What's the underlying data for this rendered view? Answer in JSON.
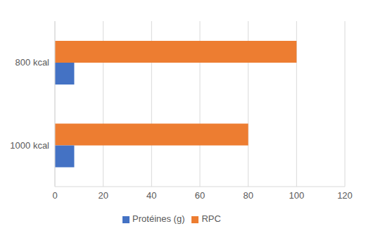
{
  "chart_data": {
    "type": "bar",
    "orientation": "horizontal",
    "categories": [
      "800 kcal",
      "1000 kcal"
    ],
    "series": [
      {
        "name": "RPC",
        "color": "#ED7D31",
        "values": [
          100,
          80
        ]
      },
      {
        "name": "Protéines (g)",
        "color": "#4472C4",
        "values": [
          8,
          8
        ]
      }
    ],
    "xlim": [
      0,
      120
    ],
    "xticks": [
      0,
      20,
      40,
      60,
      80,
      100,
      120
    ],
    "grid": true,
    "legend": "bottom"
  }
}
